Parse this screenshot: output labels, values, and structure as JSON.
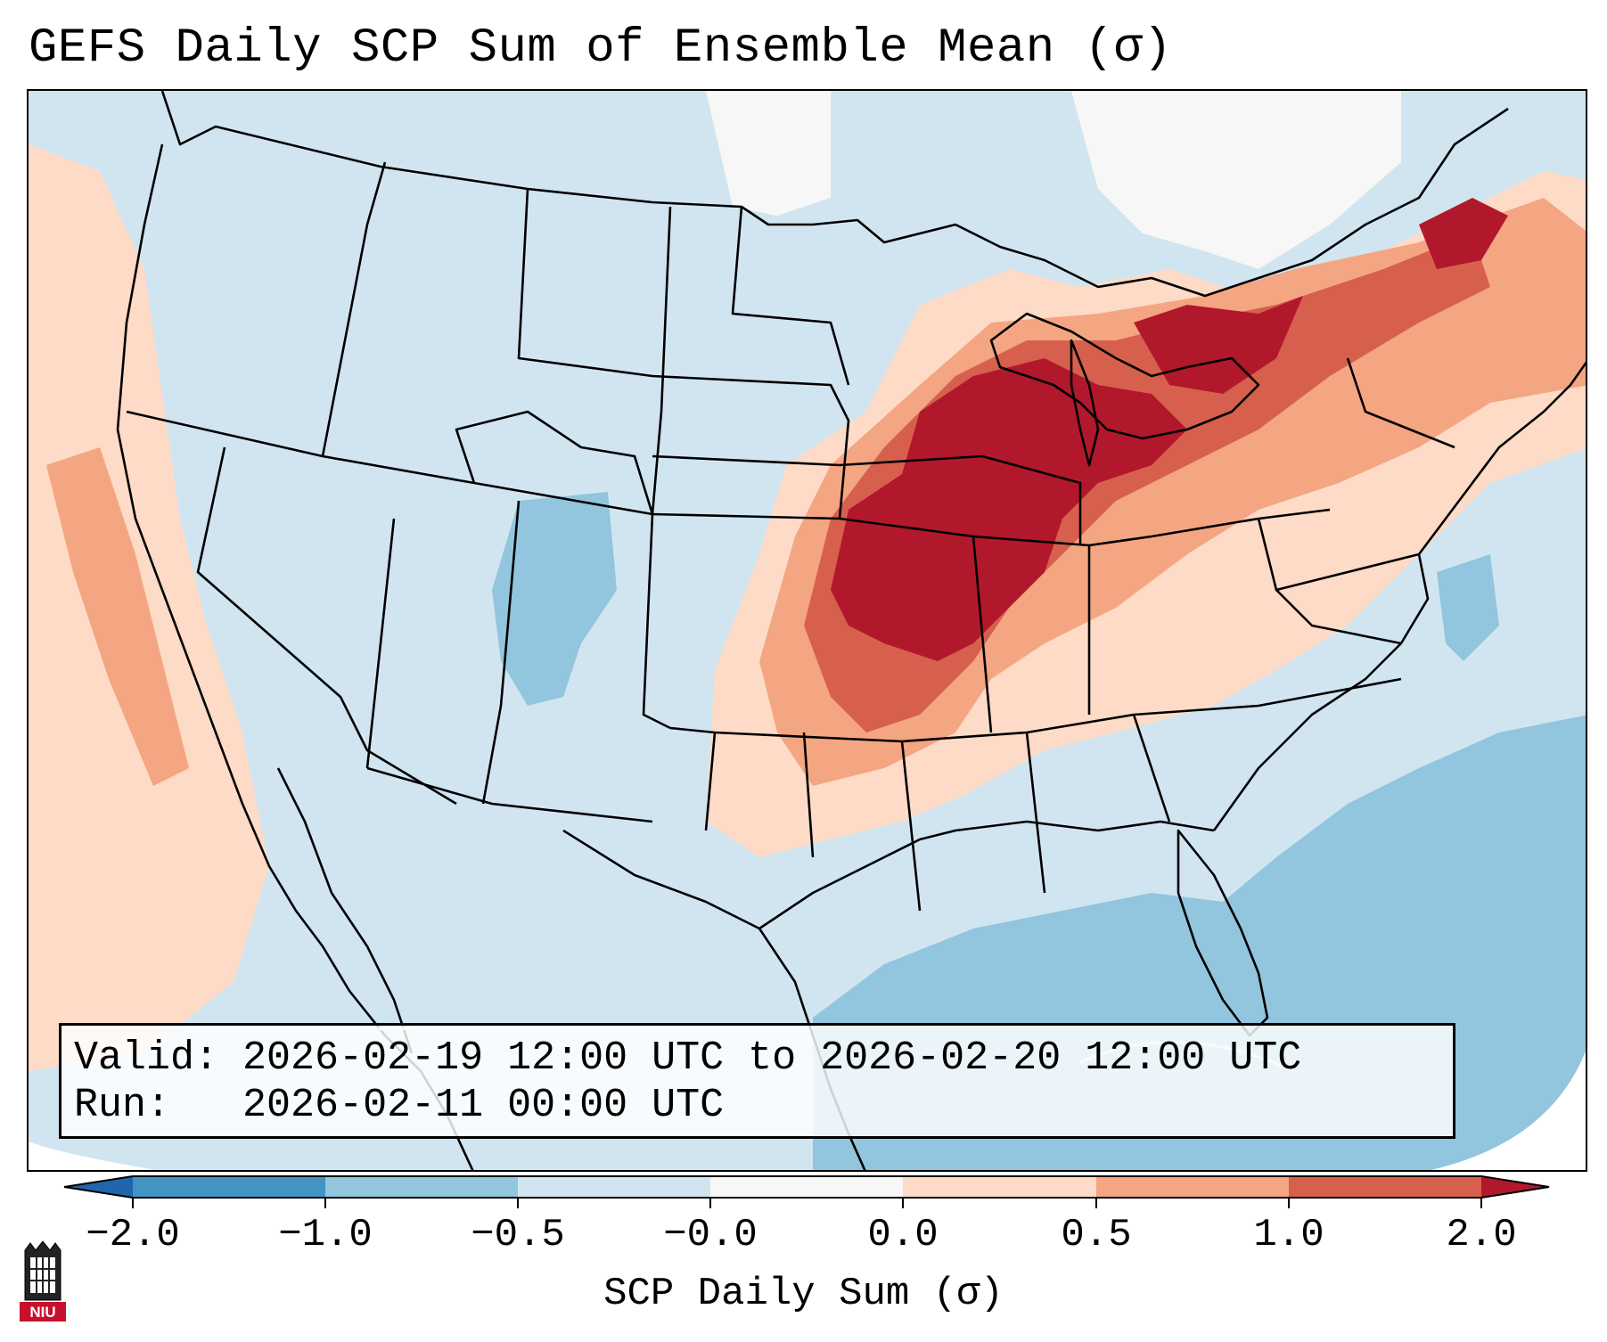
{
  "title": "GEFS Daily SCP Sum of Ensemble Mean (σ)",
  "info": {
    "valid_label": "Valid:",
    "valid_value": "2026-02-19 12:00 UTC to 2026-02-20 12:00 UTC",
    "run_label": "Run:",
    "run_value": "2026-02-11 00:00 UTC"
  },
  "colorbar": {
    "label": "SCP Daily Sum (σ)",
    "ticks": [
      "−2.0",
      "−1.0",
      "−0.5",
      "−0.0",
      "0.0",
      "0.5",
      "1.0",
      "2.0"
    ],
    "bins": [
      {
        "range": "< -2.0",
        "color": "#2166ac"
      },
      {
        "range": "-2.0 to -1.0",
        "color": "#4393c3"
      },
      {
        "range": "-1.0 to -0.5",
        "color": "#92c5de"
      },
      {
        "range": "-0.5 to -0.0",
        "color": "#d1e5f0"
      },
      {
        "range": "-0.0 to 0.0",
        "color": "#f7f7f7"
      },
      {
        "range": "0.0 to 0.5",
        "color": "#fddbc7"
      },
      {
        "range": "0.5 to 1.0",
        "color": "#f4a582"
      },
      {
        "range": "1.0 to 2.0",
        "color": "#d6604d"
      },
      {
        "range": "> 2.0",
        "color": "#b2182b"
      }
    ]
  },
  "logo": {
    "text": "NIU",
    "color": "#c8102e"
  }
}
